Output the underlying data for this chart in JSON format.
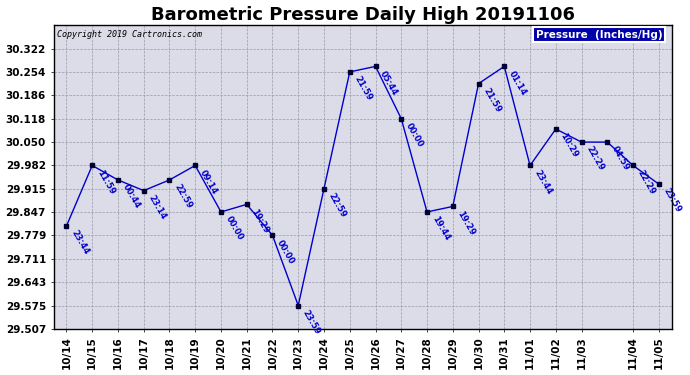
{
  "title": "Barometric Pressure Daily High 20191106",
  "copyright": "Copyright 2019 Cartronics.com",
  "legend_label": "Pressure  (Inches/Hg)",
  "points": [
    {
      "date": "10/14",
      "time": "23:44",
      "value": 29.806
    },
    {
      "date": "10/15",
      "time": "11:59",
      "value": 29.982
    },
    {
      "date": "10/16",
      "time": "00:44",
      "value": 29.94
    },
    {
      "date": "10/17",
      "time": "23:14",
      "value": 29.909
    },
    {
      "date": "10/18",
      "time": "22:59",
      "value": 29.94
    },
    {
      "date": "10/19",
      "time": "09:14",
      "value": 29.982
    },
    {
      "date": "10/20",
      "time": "00:00",
      "value": 29.847
    },
    {
      "date": "10/21",
      "time": "19:29",
      "value": 29.869
    },
    {
      "date": "10/22",
      "time": "00:00",
      "value": 29.779
    },
    {
      "date": "10/23",
      "time": "23:59",
      "value": 29.575
    },
    {
      "date": "10/24",
      "time": "22:59",
      "value": 29.915
    },
    {
      "date": "10/25",
      "time": "21:59",
      "value": 30.254
    },
    {
      "date": "10/26",
      "time": "05:44",
      "value": 30.27
    },
    {
      "date": "10/27",
      "time": "00:00",
      "value": 30.118
    },
    {
      "date": "10/28",
      "time": "19:44",
      "value": 29.847
    },
    {
      "date": "10/29",
      "time": "19:29",
      "value": 29.863
    },
    {
      "date": "10/30",
      "time": "21:59",
      "value": 30.22
    },
    {
      "date": "10/31",
      "time": "01:14",
      "value": 30.27
    },
    {
      "date": "11/01",
      "time": "23:44",
      "value": 29.982
    },
    {
      "date": "11/02",
      "time": "10:29",
      "value": 30.088
    },
    {
      "date": "11/03",
      "time": "22:29",
      "value": 30.05
    },
    {
      "date": "11/03",
      "time": "04:59",
      "value": 30.05
    },
    {
      "date": "11/04",
      "time": "22:29",
      "value": 29.982
    },
    {
      "date": "11/05",
      "time": "23:59",
      "value": 29.928
    }
  ],
  "ylim_min": 29.507,
  "ylim_max": 30.39,
  "yticks": [
    29.507,
    29.575,
    29.643,
    29.711,
    29.779,
    29.847,
    29.915,
    29.982,
    30.05,
    30.118,
    30.186,
    30.254,
    30.322
  ],
  "line_color": "#0000cc",
  "bg_color": "#ffffff",
  "plot_bg_color": "#dcdce8",
  "title_fontsize": 13,
  "tick_fontsize": 7.5
}
